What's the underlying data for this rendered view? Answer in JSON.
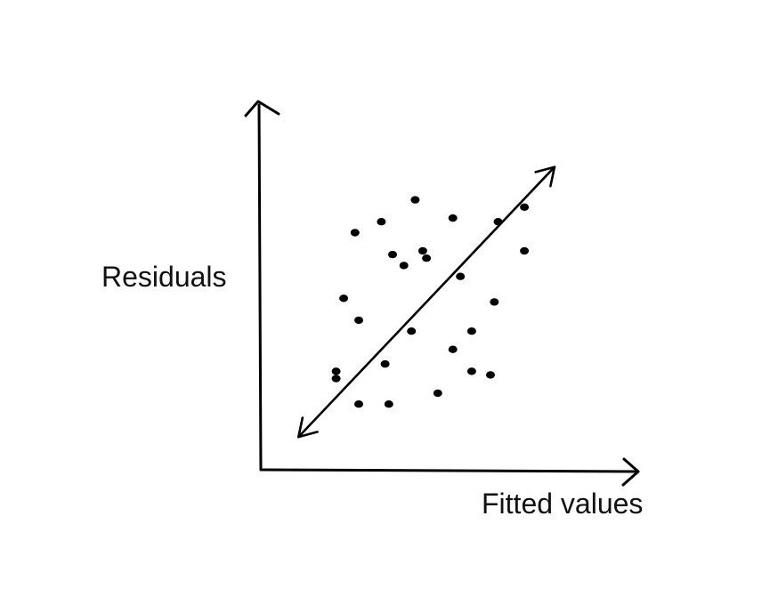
{
  "chart_data": {
    "type": "scatter",
    "title": "",
    "xlabel": "Fitted values",
    "ylabel": "Residuals",
    "xlim": [
      0,
      10
    ],
    "ylim": [
      0,
      10
    ],
    "grid": false,
    "legend": "none",
    "ticks": false,
    "points": [
      {
        "x": 3.2,
        "y": 6.8
      },
      {
        "x": 4.1,
        "y": 7.4
      },
      {
        "x": 5.1,
        "y": 6.9
      },
      {
        "x": 7.0,
        "y": 7.2
      },
      {
        "x": 6.3,
        "y": 6.8
      },
      {
        "x": 2.5,
        "y": 6.5
      },
      {
        "x": 3.5,
        "y": 5.9
      },
      {
        "x": 4.3,
        "y": 6.0
      },
      {
        "x": 4.4,
        "y": 5.8
      },
      {
        "x": 3.8,
        "y": 5.6
      },
      {
        "x": 2.2,
        "y": 4.7
      },
      {
        "x": 6.2,
        "y": 4.6
      },
      {
        "x": 5.3,
        "y": 5.3
      },
      {
        "x": 7.0,
        "y": 6.0
      },
      {
        "x": 2.6,
        "y": 4.1
      },
      {
        "x": 4.0,
        "y": 3.8
      },
      {
        "x": 5.1,
        "y": 3.3
      },
      {
        "x": 5.6,
        "y": 3.8
      },
      {
        "x": 3.3,
        "y": 2.9
      },
      {
        "x": 5.6,
        "y": 2.7
      },
      {
        "x": 6.1,
        "y": 2.6
      },
      {
        "x": 2.0,
        "y": 2.5
      },
      {
        "x": 4.7,
        "y": 2.1
      },
      {
        "x": 2.6,
        "y": 1.8
      },
      {
        "x": 3.4,
        "y": 1.8
      },
      {
        "x": 2.0,
        "y": 2.7
      }
    ],
    "trend": {
      "style": "double-arrow",
      "from": {
        "x": 1.0,
        "y": 0.9
      },
      "to": {
        "x": 7.8,
        "y": 8.3
      }
    },
    "colors": {
      "points": "#000000",
      "axes": "#000000",
      "trend": "#000000",
      "text": "#111111"
    }
  }
}
